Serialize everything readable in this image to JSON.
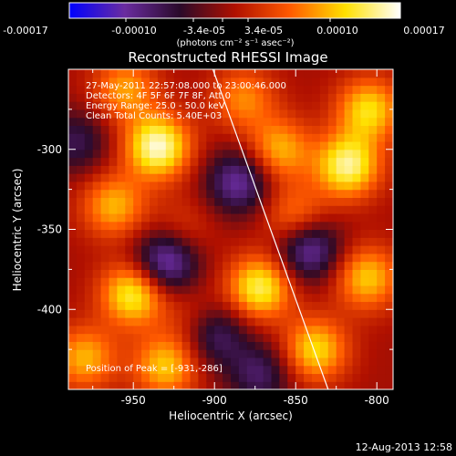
{
  "colorbar": {
    "ticks": [
      "-0.00017",
      "-0.00010",
      "-3.4e-05",
      "3.4e-05",
      "0.00010",
      "0.00017"
    ],
    "unit_label": "(photons cm⁻² s⁻¹ asec⁻²)"
  },
  "chart_data": {
    "type": "heatmap",
    "title": "Reconstructed RHESSI Image",
    "xlabel": "Heliocentric X (arcsec)",
    "ylabel": "Heliocentric Y (arcsec)",
    "xlim": [
      -990,
      -790
    ],
    "ylim": [
      -450,
      -250
    ],
    "x_ticks": [
      -950,
      -900,
      -850,
      -800
    ],
    "y_ticks": [
      -300,
      -350,
      -400
    ],
    "value_range": [
      -0.00017,
      0.00017
    ],
    "colormap_stops": [
      "#0000ff",
      "#6a2ca0",
      "#2a0a2a",
      "#b01000",
      "#ff5a00",
      "#ffe000",
      "#ffffff"
    ],
    "grid": false,
    "peak": [
      -931,
      -286
    ],
    "limb_line": [
      [
        -901,
        -250
      ],
      [
        -830,
        -450
      ]
    ],
    "hot_spots": [
      {
        "x": -935,
        "y": -298,
        "v": 0.000165
      },
      {
        "x": -950,
        "y": -390,
        "v": 0.00014
      },
      {
        "x": -962,
        "y": -335,
        "v": 0.0001
      },
      {
        "x": -920,
        "y": -350,
        "v": 4e-05
      },
      {
        "x": -872,
        "y": -386,
        "v": 0.00014
      },
      {
        "x": -850,
        "y": -342,
        "v": 8e-05
      },
      {
        "x": -860,
        "y": -300,
        "v": 0.0001
      },
      {
        "x": -818,
        "y": -310,
        "v": 0.00015
      },
      {
        "x": -805,
        "y": -275,
        "v": 0.00012
      },
      {
        "x": -882,
        "y": -268,
        "v": 8e-05
      },
      {
        "x": -806,
        "y": -380,
        "v": 0.00011
      },
      {
        "x": -838,
        "y": -425,
        "v": 0.00012
      },
      {
        "x": -930,
        "y": -435,
        "v": 0.00011
      },
      {
        "x": -980,
        "y": -430,
        "v": 0.0001
      },
      {
        "x": -955,
        "y": -262,
        "v": 9e-05
      },
      {
        "x": -912,
        "y": -405,
        "v": 4e-05
      }
    ],
    "cold_spots": [
      {
        "x": -930,
        "y": -370,
        "v": -0.00013
      },
      {
        "x": -885,
        "y": -320,
        "v": -0.00011
      },
      {
        "x": -842,
        "y": -362,
        "v": -0.00012
      },
      {
        "x": -900,
        "y": -415,
        "v": -9e-05
      },
      {
        "x": -872,
        "y": -440,
        "v": -8e-05
      },
      {
        "x": -985,
        "y": -295,
        "v": -7e-05
      }
    ]
  },
  "annotations": {
    "time_range": "27-May-2011 22:57:08.000 to 23:00:46.000",
    "detectors": "Detectors: 4F 5F 6F 7F 8F, Att 0",
    "energy": "Energy Range: 25.0 - 50.0 keV",
    "method": "Clean    Total Counts: 5.40E+03",
    "peak_position": "Position of Peak = [-931,-286]"
  },
  "timestamp": "12-Aug-2013 12:58"
}
